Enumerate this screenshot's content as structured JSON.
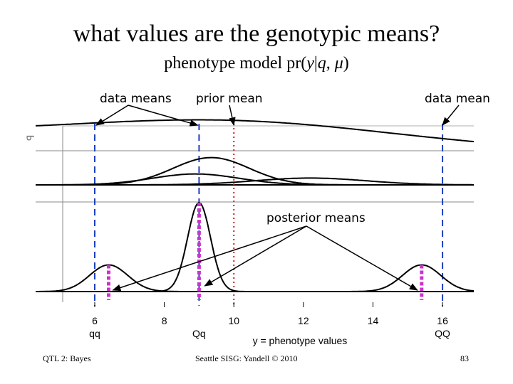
{
  "slide": {
    "title": "what values are the genotypic means?",
    "subtitle_prefix": "phenotype model pr(",
    "subtitle_y": "y",
    "subtitle_bar": "|",
    "subtitle_q": "q",
    "subtitle_comma": ", ",
    "subtitle_mu": "μ",
    "subtitle_suffix": ")",
    "footer_left": "QTL 2: Bayes",
    "footer_center": "Seattle SISG: Yandell © 2010",
    "page_number": "83"
  },
  "chart_data": {
    "type": "line",
    "title": "phenotype model pr(y|q, μ)",
    "xlabel": "y = phenotype values",
    "xlim": [
      4.3,
      16.9
    ],
    "x_ticks": [
      6,
      8,
      10,
      12,
      14,
      16
    ],
    "genotype_labels": [
      {
        "x": 6,
        "label": "qq"
      },
      {
        "x": 9,
        "label": "Qq"
      },
      {
        "x": 16,
        "label": "QQ"
      }
    ],
    "reference_lines": [
      {
        "name": "data mean qq",
        "x": 6,
        "color": "#1f3fbf",
        "style": "dashed"
      },
      {
        "name": "data mean Qq",
        "x": 9,
        "color": "#1f3fbf",
        "style": "dashed"
      },
      {
        "name": "data mean QQ",
        "x": 16,
        "color": "#1f3fbf",
        "style": "dashed"
      },
      {
        "name": "prior mean",
        "x": 10,
        "color": "#d62020",
        "style": "dotted"
      }
    ],
    "posterior_means": [
      {
        "genotype": "qq",
        "x": 6.4,
        "color": "#cc33cc"
      },
      {
        "genotype": "Qq",
        "x": 9.0,
        "color": "#cc33cc"
      },
      {
        "genotype": "QQ",
        "x": 15.4,
        "color": "#cc33cc"
      }
    ],
    "panels": [
      {
        "name": "prior",
        "series": [
          {
            "name": "prior density",
            "shape": "normal",
            "mean": 10,
            "sd": 4.5,
            "scale": 0.18,
            "tilt": 0.009
          }
        ]
      },
      {
        "name": "likelihood",
        "series": [
          {
            "name": "qq likelihood",
            "shape": "normal",
            "mean": 8.9,
            "sd": 1.25,
            "scale": 0.32
          },
          {
            "name": "Qq likelihood",
            "shape": "normal",
            "mean": 9.35,
            "sd": 1.1,
            "scale": 0.8
          },
          {
            "name": "QQ likelihood",
            "shape": "normal",
            "mean": 12.2,
            "sd": 1.6,
            "scale": 0.2
          }
        ]
      },
      {
        "name": "posterior",
        "series": [
          {
            "name": "qq posterior",
            "shape": "normal",
            "mean": 6.4,
            "sd": 0.55,
            "scale": 0.3
          },
          {
            "name": "Qq posterior",
            "shape": "normal",
            "mean": 9.0,
            "sd": 0.33,
            "scale": 1.0
          },
          {
            "name": "QQ posterior",
            "shape": "normal",
            "mean": 15.4,
            "sd": 0.55,
            "scale": 0.3
          }
        ]
      }
    ],
    "annotations": [
      {
        "text": "data means",
        "points_to": [
          "data mean qq",
          "data mean Qq"
        ]
      },
      {
        "text": "prior mean",
        "points_to": [
          "prior mean"
        ]
      },
      {
        "text": "data mean",
        "points_to": [
          "data mean QQ"
        ]
      },
      {
        "text": "posterior means",
        "points_to": [
          "qq",
          "Qq",
          "QQ"
        ]
      }
    ],
    "left_edge_fragment": "ꟼ"
  }
}
